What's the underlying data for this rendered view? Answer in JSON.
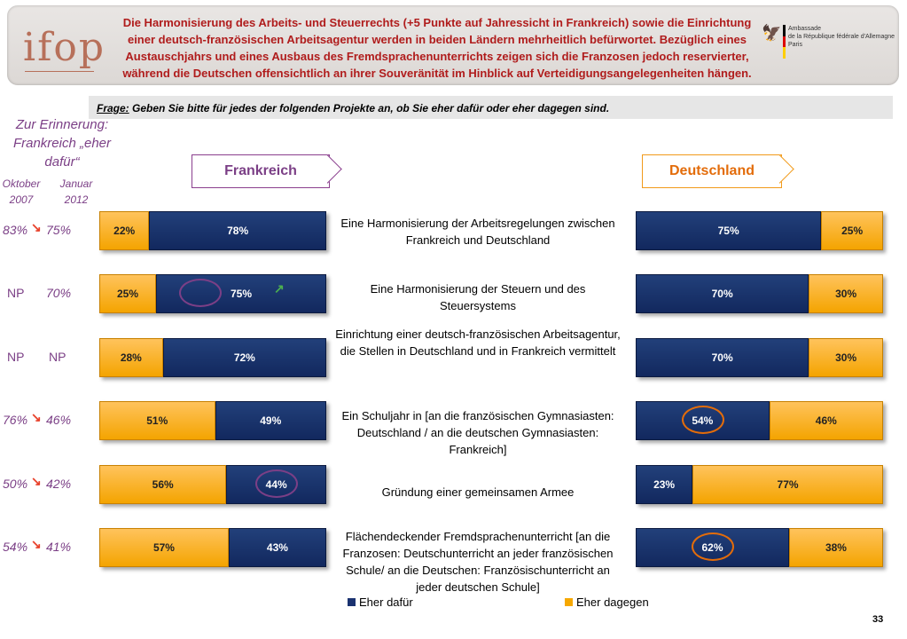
{
  "header": {
    "logo_text": "ifop",
    "headline": "Die Harmonisierung des Arbeits- und Steuerrechts (+5 Punkte auf Jahressicht in Frankreich) sowie die Einrichtung einer deutsch-französischen Arbeitsagentur werden in beiden Ländern mehrheitlich befürwortet. Bezüglich eines Austauschjahrs und eines Ausbaus des Fremdsprachenunterrichts zeigen sich die Franzosen jedoch reservierter, während die Deutschen offensichtlich an ihrer Souveränität im Hinblick auf Verteidigungsangelegenheiten hängen.",
    "embassy_line1": "Ambassade",
    "embassy_line2": "de la République fédérale d'Allemagne",
    "embassy_line3": "Paris"
  },
  "question": {
    "prefix": "Frage:",
    "text": "Geben Sie bitte für jedes der folgenden Projekte an, ob Sie eher dafür oder eher dagegen sind."
  },
  "reminder": {
    "title": "Zur Erinnerung: Frankreich „eher dafür“",
    "period1": "Oktober 2007",
    "period2": "Januar 2012"
  },
  "countries": {
    "france": "Frankreich",
    "germany": "Deutschland"
  },
  "history": [
    {
      "a": "83%",
      "b": "75%",
      "trend": "down"
    },
    {
      "a": "NP",
      "b": "70%",
      "trend": "none"
    },
    {
      "a": "NP",
      "b": "NP",
      "trend": "none"
    },
    {
      "a": "76%",
      "b": "46%",
      "trend": "down"
    },
    {
      "a": "50%",
      "b": "42%",
      "trend": "down"
    },
    {
      "a": "54%",
      "b": "41%",
      "trend": "down"
    }
  ],
  "chart_data": {
    "type": "bar",
    "categories": [
      "Eine Harmonisierung der Arbeitsregelungen zwischen Frankreich und Deutschland",
      "Eine Harmonisierung der Steuern und des Steuersystems",
      "Einrichtung einer deutsch-französischen Arbeitsagentur, die Stellen in Deutschland und in Frankreich vermittelt",
      "Ein Schuljahr in [an die französischen Gymnasiasten: Deutschland / an die deutschen Gymnasiasten: Frankreich]",
      "Gründung einer gemeinsamen Armee",
      "Flächendeckender Fremdsprachenunterricht [an die Franzosen: Deutschunterricht an jeder französischen Schule/ an die Deutschen: Französischunterricht an jeder deutschen Schule]"
    ],
    "series": [
      {
        "name": "Eher dafür",
        "color": "#1a3270"
      },
      {
        "name": "Eher dagegen",
        "color": "#f6a800"
      }
    ],
    "france": {
      "dafuer": [
        78,
        75,
        72,
        49,
        44,
        43
      ],
      "dagegen": [
        22,
        25,
        28,
        51,
        56,
        57
      ],
      "labels_dafuer": [
        "78%",
        "75%",
        "72%",
        "49%",
        "44%",
        "43%"
      ],
      "labels_dagegen": [
        "22%",
        "25%",
        "28%",
        "51%",
        "56%",
        "57%"
      ]
    },
    "germany": {
      "dafuer": [
        75,
        70,
        70,
        54,
        23,
        62
      ],
      "dagegen": [
        25,
        30,
        30,
        46,
        77,
        38
      ],
      "labels_dafuer": [
        "75%",
        "70%",
        "70%",
        "54%",
        "23%",
        "62%"
      ],
      "labels_dagegen": [
        "25%",
        "30%",
        "30%",
        "46%",
        "77%",
        "38%"
      ]
    },
    "highlighted_france": [
      1,
      4
    ],
    "highlighted_germany": [
      3,
      5
    ]
  },
  "legend": {
    "dafuer": "Eher dafür",
    "dagegen": "Eher dagegen"
  },
  "page_number": "33"
}
